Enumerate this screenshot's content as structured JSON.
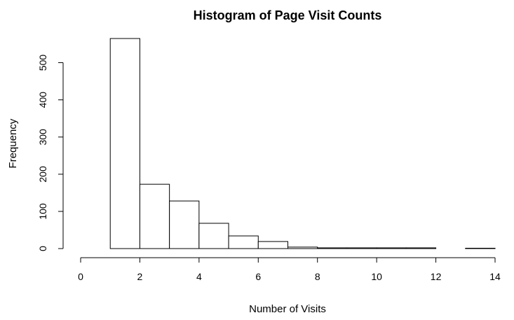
{
  "chart_data": {
    "type": "bar",
    "title": "Histogram of Page Visit Counts",
    "xlabel": "Number of Visits",
    "ylabel": "Frequency",
    "xlim": [
      0,
      14
    ],
    "ylim": [
      0,
      565
    ],
    "x_ticks": [
      "0",
      "2",
      "4",
      "6",
      "8",
      "10",
      "12",
      "14"
    ],
    "y_ticks": [
      "0",
      "100",
      "200",
      "300",
      "400",
      "500"
    ],
    "bins": [
      {
        "start": 1,
        "end": 2,
        "count": 565
      },
      {
        "start": 2,
        "end": 3,
        "count": 173
      },
      {
        "start": 3,
        "end": 4,
        "count": 128
      },
      {
        "start": 4,
        "end": 5,
        "count": 68
      },
      {
        "start": 5,
        "end": 6,
        "count": 34
      },
      {
        "start": 6,
        "end": 7,
        "count": 19
      },
      {
        "start": 7,
        "end": 8,
        "count": 4
      },
      {
        "start": 8,
        "end": 9,
        "count": 2
      },
      {
        "start": 9,
        "end": 10,
        "count": 2
      },
      {
        "start": 10,
        "end": 11,
        "count": 2
      },
      {
        "start": 11,
        "end": 12,
        "count": 2
      },
      {
        "start": 12,
        "end": 13,
        "count": 0
      },
      {
        "start": 13,
        "end": 14,
        "count": 1
      }
    ],
    "grid": false,
    "legend": "none"
  }
}
